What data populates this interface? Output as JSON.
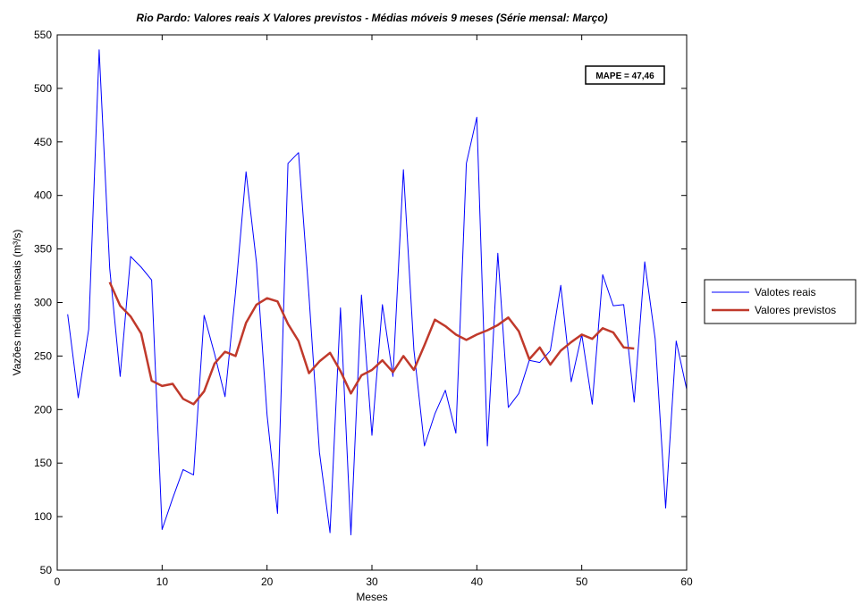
{
  "chart_data": {
    "type": "line",
    "title": "Rio Pardo: Valores reais X Valores previstos - Médias móveis 9 meses (Série mensal: Março)",
    "xlabel": "Meses",
    "ylabel": "Vazões médias mensais (m³/s)",
    "xlim": [
      0,
      60
    ],
    "ylim": [
      50,
      550
    ],
    "xticks": [
      0,
      10,
      20,
      30,
      40,
      50,
      60
    ],
    "yticks": [
      50,
      100,
      150,
      200,
      250,
      300,
      350,
      400,
      450,
      500,
      550
    ],
    "grid": false,
    "legend_position": "outside-right",
    "annotation": "MAPE = 47,46",
    "series": [
      {
        "name": "Valotes reais",
        "color": "#0000ff",
        "x": [
          1,
          2,
          3,
          4,
          5,
          6,
          7,
          8,
          9,
          10,
          11,
          12,
          13,
          14,
          15,
          16,
          17,
          18,
          19,
          20,
          21,
          22,
          23,
          24,
          25,
          26,
          27,
          28,
          29,
          30,
          31,
          32,
          33,
          34,
          35,
          36,
          37,
          38,
          39,
          40,
          41,
          42,
          43,
          44,
          45,
          46,
          47,
          48,
          49,
          50,
          51,
          52,
          53,
          54,
          55,
          56,
          57,
          58,
          59,
          60
        ],
        "y": [
          289,
          211,
          275,
          536,
          332,
          231,
          343,
          333,
          321,
          88,
          117,
          144,
          139,
          288,
          252,
          212,
          310,
          422,
          337,
          195,
          103,
          430,
          440,
          306,
          160,
          85,
          295,
          83,
          307,
          176,
          298,
          231,
          424,
          256,
          166,
          196,
          218,
          178,
          430,
          473,
          166,
          346,
          202,
          215,
          246,
          244,
          255,
          316,
          226,
          270,
          205,
          326,
          297,
          298,
          207,
          338,
          266,
          108,
          264,
          219
        ]
      },
      {
        "name": "Valores previstos",
        "color": "#c0392b",
        "x": [
          5,
          6,
          7,
          8,
          9,
          10,
          11,
          12,
          13,
          14,
          15,
          16,
          17,
          18,
          19,
          20,
          21,
          22,
          23,
          24,
          25,
          26,
          27,
          28,
          29,
          30,
          31,
          32,
          33,
          34,
          35,
          36,
          37,
          38,
          39,
          40,
          41,
          42,
          43,
          44,
          45,
          46,
          47,
          48,
          49,
          50,
          51,
          52,
          53,
          54,
          55
        ],
        "y": [
          319,
          297,
          287,
          271,
          227,
          222,
          224,
          210,
          205,
          217,
          243,
          254,
          250,
          281,
          298,
          304,
          301,
          280,
          264,
          234,
          245,
          253,
          236,
          215,
          232,
          237,
          246,
          235,
          250,
          237,
          260,
          284,
          278,
          270,
          265,
          270,
          274,
          279,
          286,
          273,
          247,
          258,
          242,
          255,
          263,
          270,
          266,
          276,
          272,
          258,
          257
        ]
      }
    ]
  }
}
